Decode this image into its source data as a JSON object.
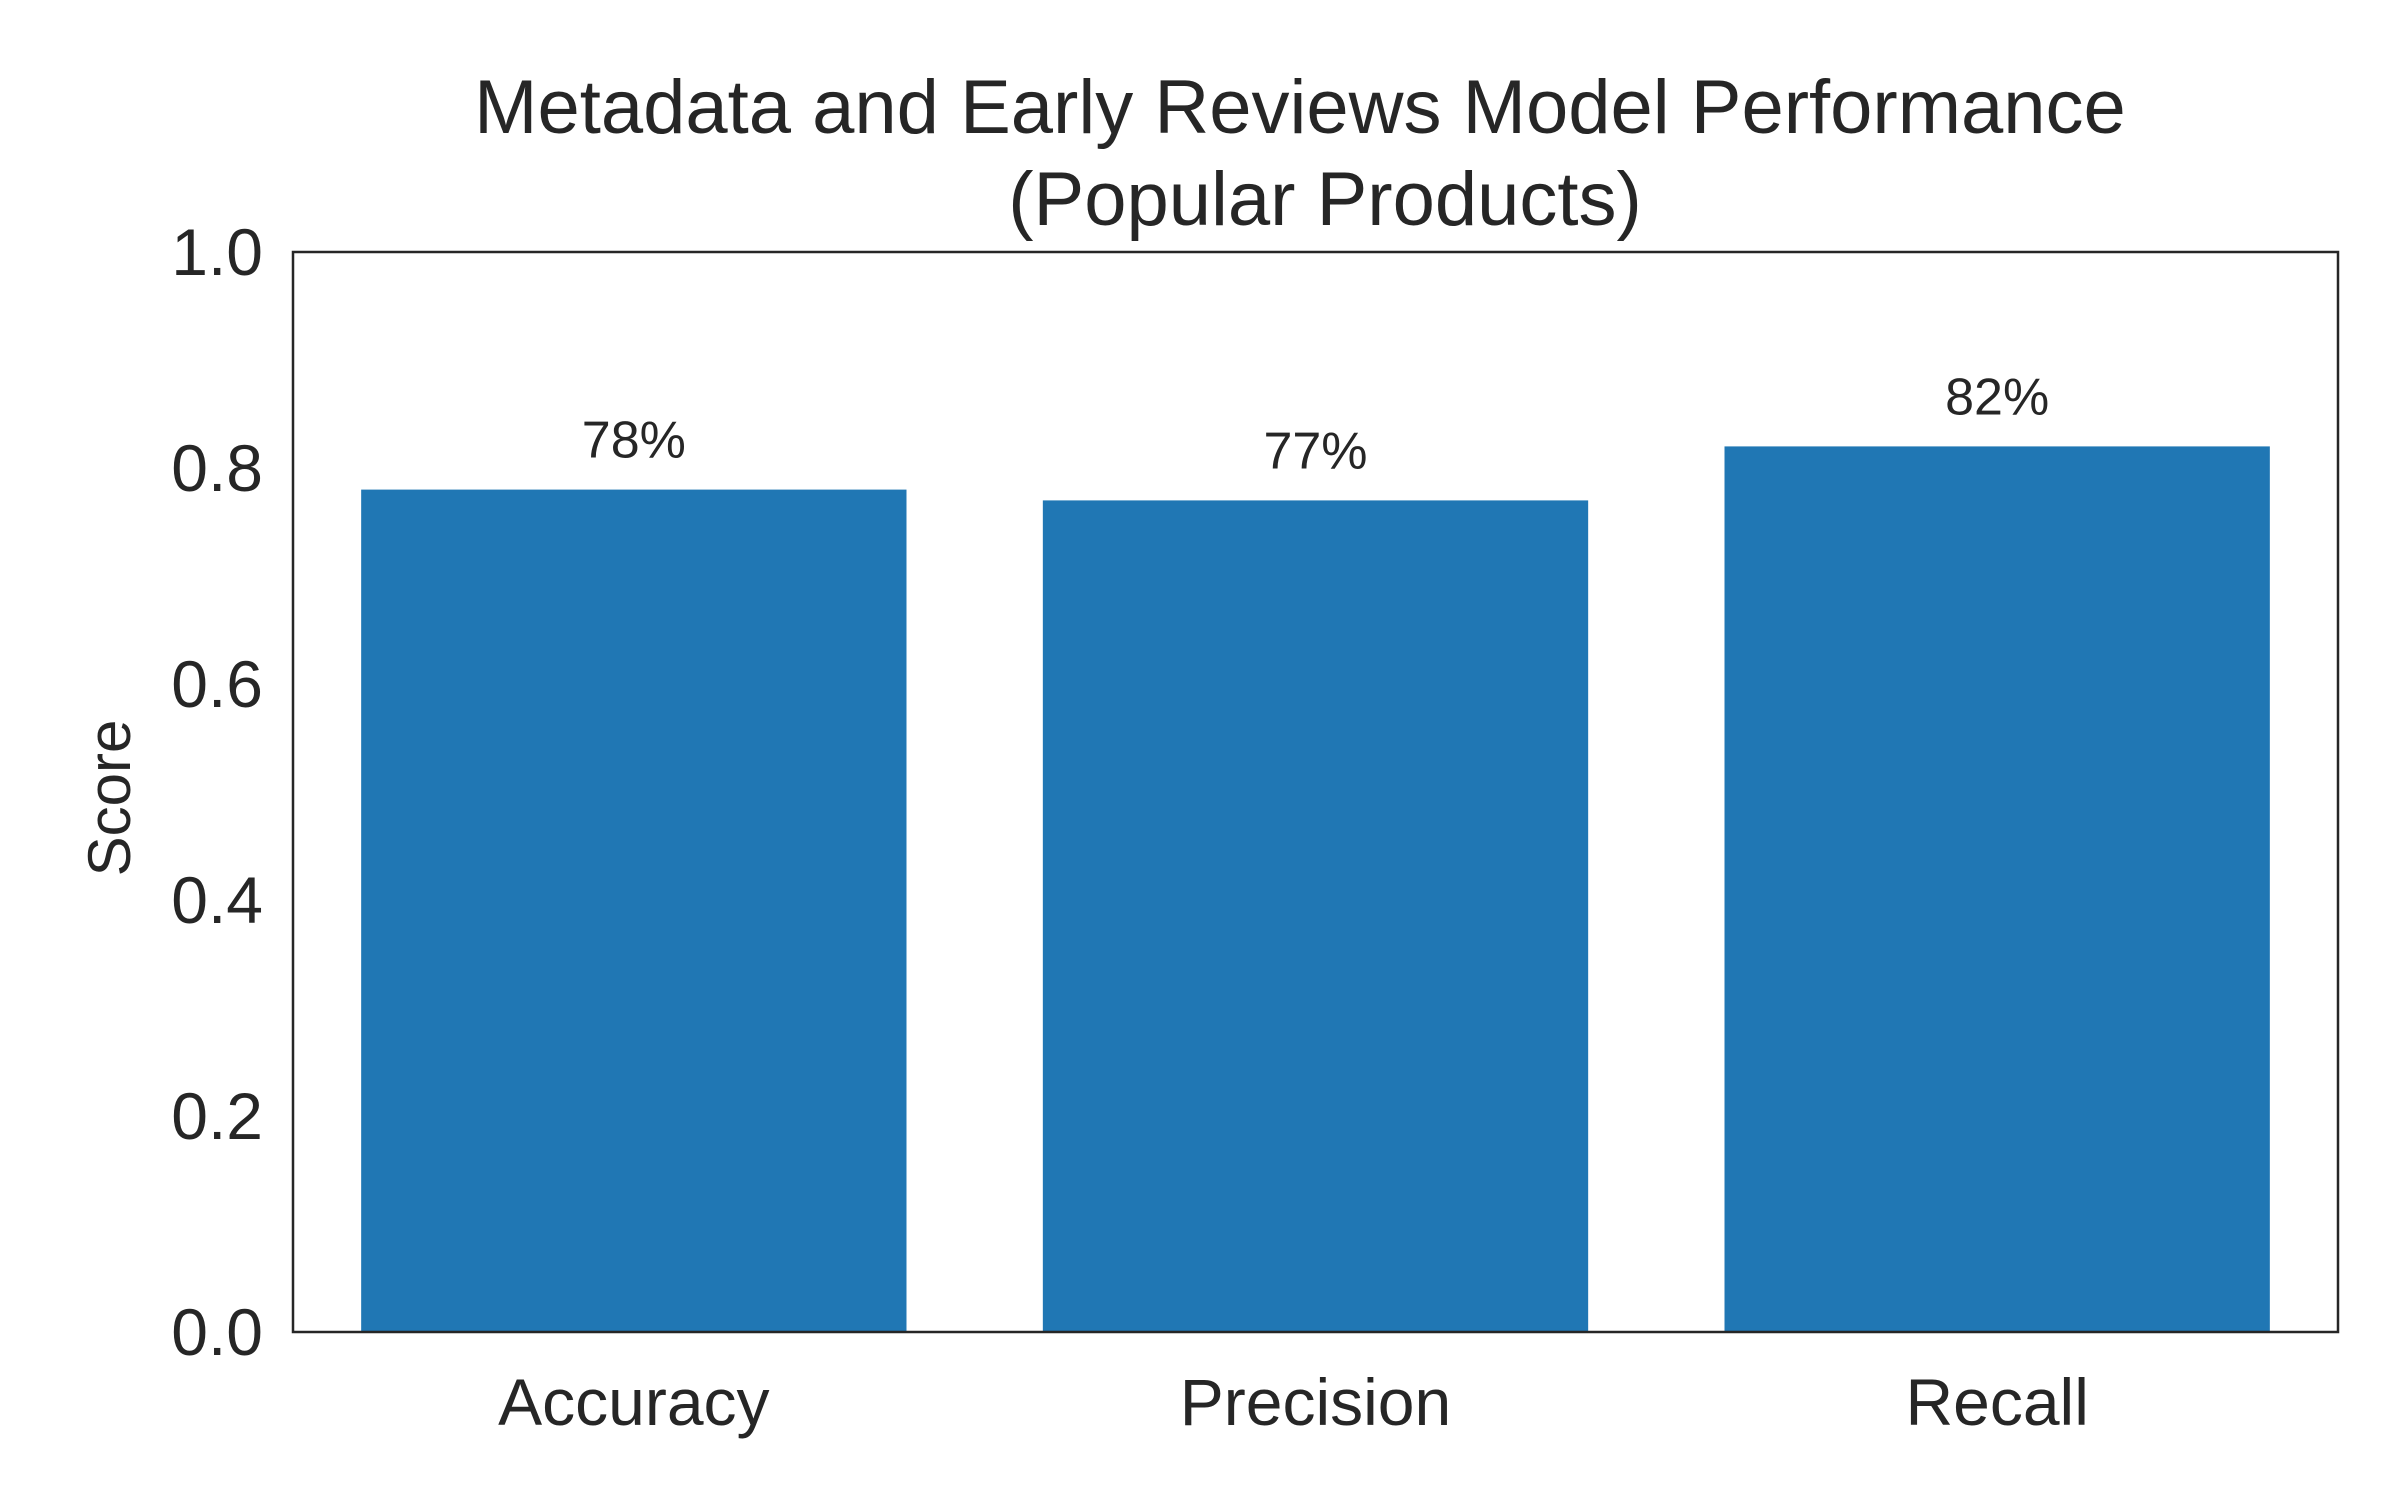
{
  "chart_data": {
    "type": "bar",
    "title": "Metadata and Early Reviews Model Performance\n(Popular Products)",
    "title_lines": [
      "Metadata and Early Reviews Model Performance",
      "(Popular Products)"
    ],
    "xlabel": "",
    "ylabel": "Score",
    "categories": [
      "Accuracy",
      "Precision",
      "Recall"
    ],
    "values": [
      0.78,
      0.77,
      0.82
    ],
    "data_labels": [
      "78%",
      "77%",
      "82%"
    ],
    "ylim": [
      0,
      1.0
    ],
    "yticks": [
      0.0,
      0.2,
      0.4,
      0.6,
      0.8,
      1.0
    ],
    "ytick_labels": [
      "0.0",
      "0.2",
      "0.4",
      "0.6",
      "0.8",
      "1.0"
    ],
    "grid": false,
    "legend": "none",
    "bar_color": "#2077b4",
    "axis_color": "#262626",
    "text_color": "#262626",
    "background": "#ffffff"
  }
}
